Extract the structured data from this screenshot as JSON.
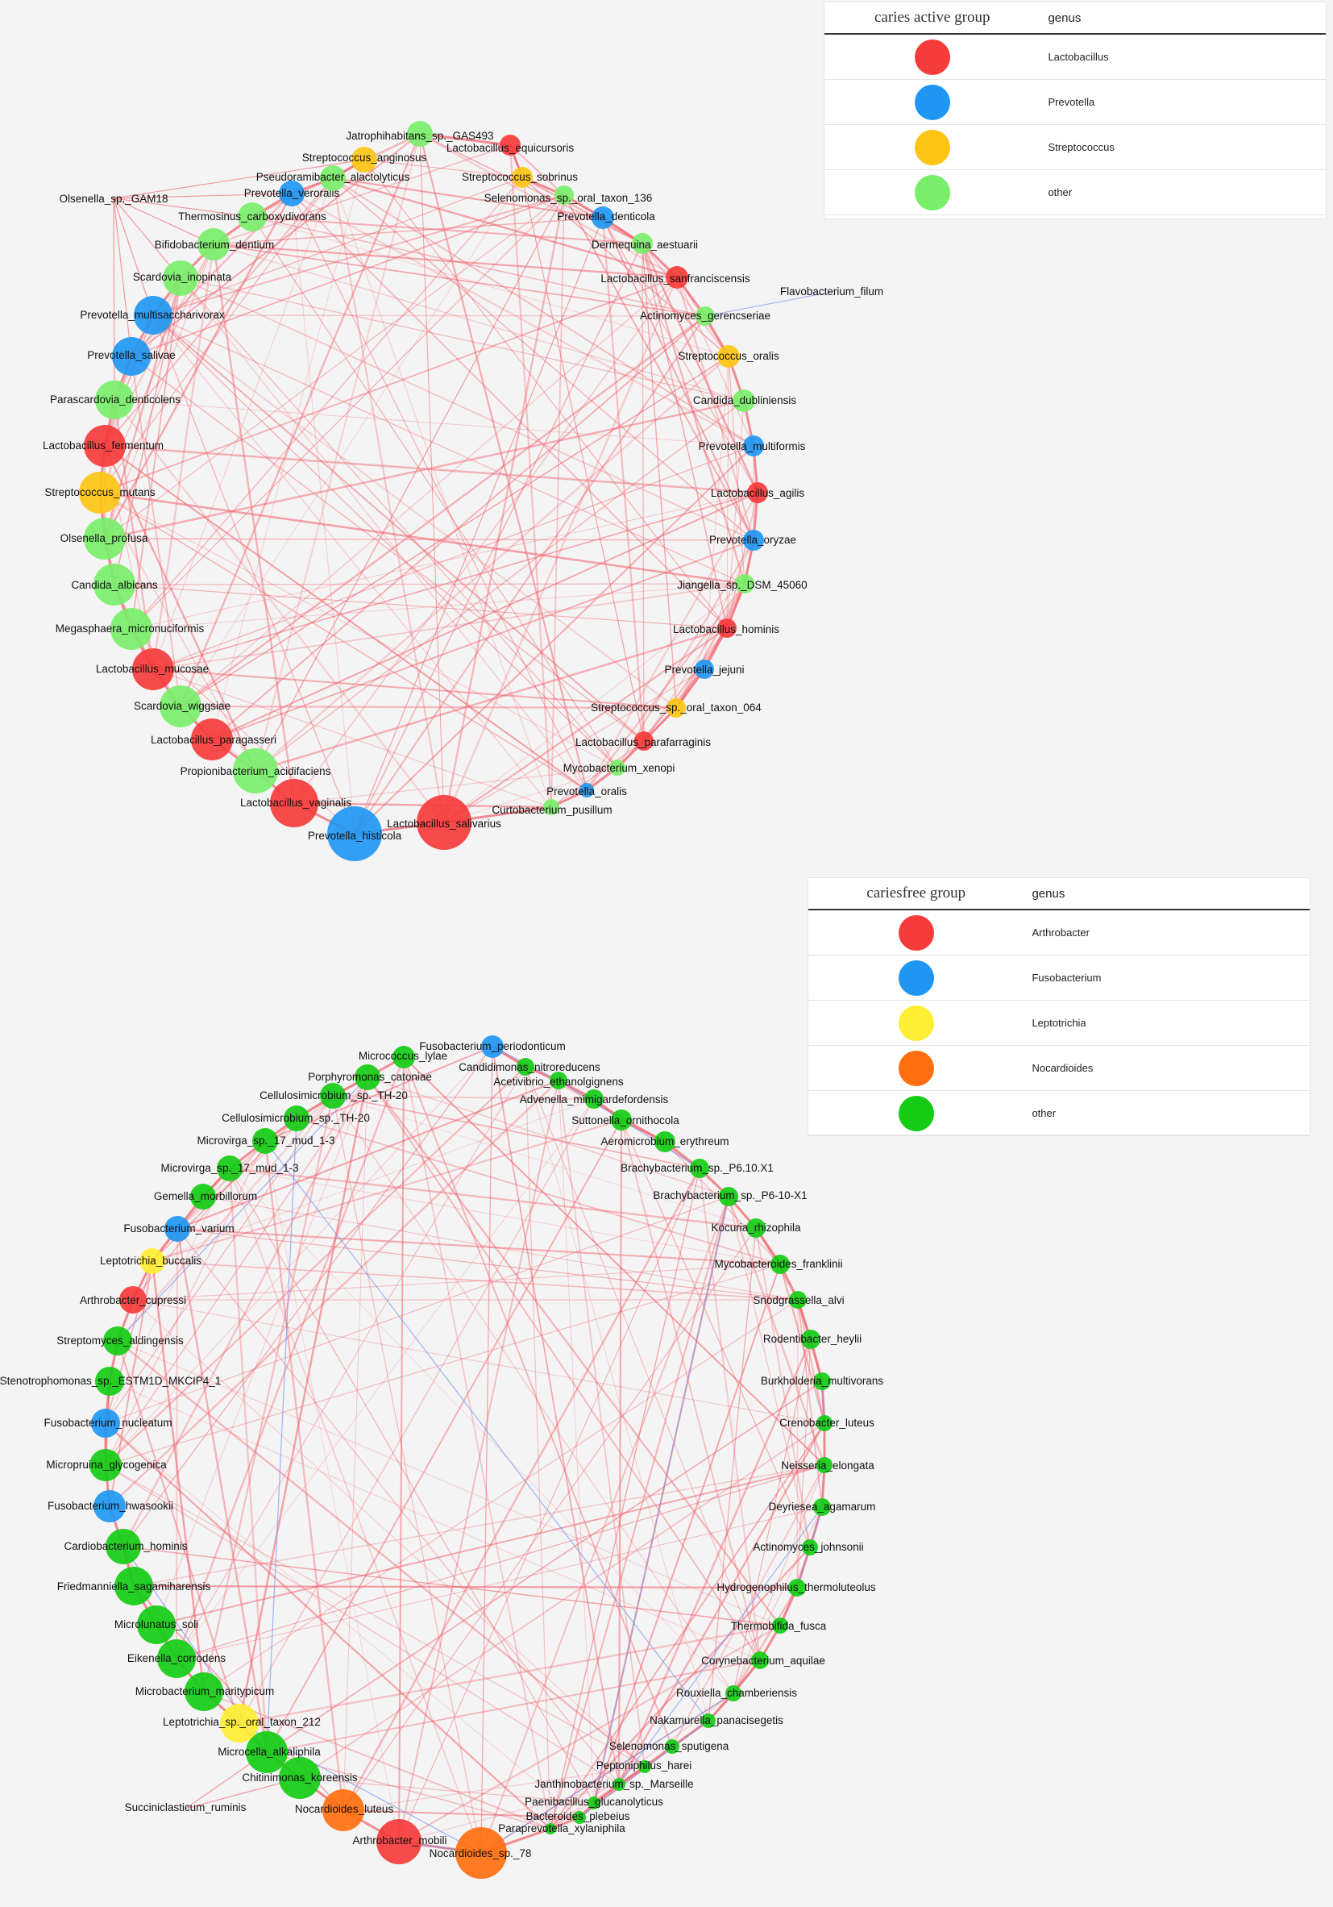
{
  "colors": {
    "Lactobacillus": "#f63b3b",
    "Prevotella": "#1f97f2",
    "Streptococcus": "#fcc515",
    "other_active": "#79ee6a",
    "Arthrobacter": "#f63b3b",
    "Fusobacterium": "#1f97f2",
    "Leptotrichia": "#ffee33",
    "Nocardioides": "#ff6f10",
    "other_free": "#14cc14",
    "edge_pos": "#f25c67",
    "edge_neg": "#6f8ff2"
  },
  "legend_active": {
    "title": "caries active group",
    "genus_header": "genus",
    "items": [
      {
        "label": "Lactobacillus",
        "color": "#f63b3b"
      },
      {
        "label": "Prevotella",
        "color": "#1f97f2"
      },
      {
        "label": "Streptococcus",
        "color": "#fcc515"
      },
      {
        "label": "other",
        "color": "#79ee6a"
      }
    ]
  },
  "legend_free": {
    "title": "cariesfree group",
    "genus_header": "genus",
    "items": [
      {
        "label": "Arthrobacter",
        "color": "#f63b3b"
      },
      {
        "label": "Fusobacterium",
        "color": "#1f97f2"
      },
      {
        "label": "Leptotrichia",
        "color": "#ffee33"
      },
      {
        "label": "Nocardioides",
        "color": "#ff6f10"
      },
      {
        "label": "other",
        "color": "#14cc14"
      }
    ]
  },
  "network_active": {
    "nodes": [
      {
        "name": "Jatrophihabitans_sp._GAS493",
        "genus": "other"
      },
      {
        "name": "Lactobacillus_equicursoris",
        "genus": "Lactobacillus"
      },
      {
        "name": "Streptococcus_sobrinus",
        "genus": "Streptococcus"
      },
      {
        "name": "Selenomonas_sp._oral_taxon_136",
        "genus": "other"
      },
      {
        "name": "Prevotella_denticola",
        "genus": "Prevotella"
      },
      {
        "name": "Dermequina_aestuarii",
        "genus": "other"
      },
      {
        "name": "Lactobacillus_sanfranciscensis",
        "genus": "Lactobacillus"
      },
      {
        "name": "Actinomyces_gerencseriae",
        "genus": "other"
      },
      {
        "name": "Streptococcus_oralis",
        "genus": "Streptococcus"
      },
      {
        "name": "Candida_dubliniensis",
        "genus": "other"
      },
      {
        "name": "Prevotella_multiformis",
        "genus": "Prevotella"
      },
      {
        "name": "Lactobacillus_agilis",
        "genus": "Lactobacillus"
      },
      {
        "name": "Prevotella_oryzae",
        "genus": "Prevotella"
      },
      {
        "name": "Jiangella_sp._DSM_45060",
        "genus": "other"
      },
      {
        "name": "Lactobacillus_hominis",
        "genus": "Lactobacillus"
      },
      {
        "name": "Prevotella_jejuni",
        "genus": "Prevotella"
      },
      {
        "name": "Streptococcus_sp._oral_taxon_064",
        "genus": "Streptococcus"
      },
      {
        "name": "Lactobacillus_parafarraginis",
        "genus": "Lactobacillus"
      },
      {
        "name": "Mycobacterium_xenopi",
        "genus": "other"
      },
      {
        "name": "Prevotella_oralis",
        "genus": "Prevotella"
      },
      {
        "name": "Curtobacterium_pusillum",
        "genus": "other"
      },
      {
        "name": "Lactobacillus_salivarius",
        "genus": "Lactobacillus"
      },
      {
        "name": "Prevotella_histicola",
        "genus": "Prevotella"
      },
      {
        "name": "Lactobacillus_vaginalis",
        "genus": "Lactobacillus"
      },
      {
        "name": "Propionibacterium_acidifaciens",
        "genus": "other"
      },
      {
        "name": "Lactobacillus_paragasseri",
        "genus": "Lactobacillus"
      },
      {
        "name": "Scardovia_wiggsiae",
        "genus": "other"
      },
      {
        "name": "Lactobacillus_mucosae",
        "genus": "Lactobacillus"
      },
      {
        "name": "Megasphaera_micronuciformis",
        "genus": "other"
      },
      {
        "name": "Candida_albicans",
        "genus": "other"
      },
      {
        "name": "Olsenella_profusa",
        "genus": "other"
      },
      {
        "name": "Streptococcus_mutans",
        "genus": "Streptococcus"
      },
      {
        "name": "Lactobacillus_fermentum",
        "genus": "Lactobacillus"
      },
      {
        "name": "Parascardovia_denticolens",
        "genus": "other"
      },
      {
        "name": "Prevotella_salivae",
        "genus": "Prevotella"
      },
      {
        "name": "Prevotella_multisaccharivorax",
        "genus": "Prevotella"
      },
      {
        "name": "Scardovia_inopinata",
        "genus": "other"
      },
      {
        "name": "Bifidobacterium_dentium",
        "genus": "other"
      },
      {
        "name": "Thermosinus_carboxydivorans",
        "genus": "other"
      },
      {
        "name": "Prevotella_veroralis",
        "genus": "Prevotella"
      },
      {
        "name": "Pseudoramibacter_alactolyticus",
        "genus": "other"
      },
      {
        "name": "Streptococcus_anginosus",
        "genus": "Streptococcus"
      },
      {
        "name": "Olsenella_sp._GAM18",
        "genus": "other"
      },
      {
        "name": "Flavobacterium_filum",
        "genus": "other"
      }
    ]
  },
  "network_free": {
    "nodes": [
      {
        "name": "Fusobacterium_periodonticum",
        "genus": "Fusobacterium"
      },
      {
        "name": "Candidimonas_nitroreducens",
        "genus": "other"
      },
      {
        "name": "Acetivibrio_ethanolgignens",
        "genus": "other"
      },
      {
        "name": "Advenella_mimigardefordensis",
        "genus": "other"
      },
      {
        "name": "Suttonella_ornithocola",
        "genus": "other"
      },
      {
        "name": "Aeromicrobium_erythreum",
        "genus": "other"
      },
      {
        "name": "Brachybacterium_sp._P6.10.X1",
        "genus": "other"
      },
      {
        "name": "Brachybacterium_sp._P6-10-X1",
        "genus": "other"
      },
      {
        "name": "Kocuria_rhizophila",
        "genus": "other"
      },
      {
        "name": "Mycobacteroides_franklinii",
        "genus": "other"
      },
      {
        "name": "Snodgrassella_alvi",
        "genus": "other"
      },
      {
        "name": "Rodentibacter_heylii",
        "genus": "other"
      },
      {
        "name": "Burkholderia_multivorans",
        "genus": "other"
      },
      {
        "name": "Crenobacter_luteus",
        "genus": "other"
      },
      {
        "name": "Neisseria_elongata",
        "genus": "other"
      },
      {
        "name": "Deyriesea_agamarum",
        "genus": "other"
      },
      {
        "name": "Actinomyces_johnsonii",
        "genus": "other"
      },
      {
        "name": "Hydrogenophilus_thermoluteolus",
        "genus": "other"
      },
      {
        "name": "Thermobifida_fusca",
        "genus": "other"
      },
      {
        "name": "Corynebacterium_aquilae",
        "genus": "other"
      },
      {
        "name": "Rouxiella_chamberiensis",
        "genus": "other"
      },
      {
        "name": "Nakamurella_panacisegetis",
        "genus": "other"
      },
      {
        "name": "Selenomonas_sputigena",
        "genus": "other"
      },
      {
        "name": "Peptoniphilus_harei",
        "genus": "other"
      },
      {
        "name": "Janthinobacterium_sp._Marseille",
        "genus": "other"
      },
      {
        "name": "Paenibacillus_glucanolyticus",
        "genus": "other"
      },
      {
        "name": "Bacteroides_plebeius",
        "genus": "other"
      },
      {
        "name": "Paraprevotella_xylaniphila",
        "genus": "other"
      },
      {
        "name": "Nocardioides_sp._78",
        "genus": "Nocardioides"
      },
      {
        "name": "Arthrobacter_mobili",
        "genus": "Arthrobacter"
      },
      {
        "name": "Nocardioides_luteus",
        "genus": "Nocardioides"
      },
      {
        "name": "Chitinimonas_koreensis",
        "genus": "other"
      },
      {
        "name": "Microcella_alkaliphila",
        "genus": "other"
      },
      {
        "name": "Leptotrichia_sp._oral_taxon_212",
        "genus": "Leptotrichia"
      },
      {
        "name": "Microbacterium_maritypicum",
        "genus": "other"
      },
      {
        "name": "Eikenella_corrodens",
        "genus": "other"
      },
      {
        "name": "Microlunatus_soli",
        "genus": "other"
      },
      {
        "name": "Friedmanniella_sagamiharensis",
        "genus": "other"
      },
      {
        "name": "Cardiobacterium_hominis",
        "genus": "other"
      },
      {
        "name": "Fusobacterium_hwasookii",
        "genus": "Fusobacterium"
      },
      {
        "name": "Micropruina_glycogenica",
        "genus": "other"
      },
      {
        "name": "Fusobacterium_nucleatum",
        "genus": "Fusobacterium"
      },
      {
        "name": "Stenotrophomonas_sp._ESTM1D_MKCIP4_1",
        "genus": "other"
      },
      {
        "name": "Streptomyces_aldingensis",
        "genus": "other"
      },
      {
        "name": "Arthrobacter_cupressi",
        "genus": "Arthrobacter"
      },
      {
        "name": "Leptotrichia_buccalis",
        "genus": "Leptotrichia"
      },
      {
        "name": "Fusobacterium_varium",
        "genus": "Fusobacterium"
      },
      {
        "name": "Gemella_morbillorum",
        "genus": "other"
      },
      {
        "name": "Microvirga_sp._17_mud_1-3",
        "genus": "other"
      },
      {
        "name": "Microvirga_sp._17_mud_1-3",
        "genus": "other"
      },
      {
        "name": "Cellulosimicrobium_sp._TH-20",
        "genus": "other"
      },
      {
        "name": "Cellulosimicrobium_sp._TH-20",
        "genus": "other"
      },
      {
        "name": "Porphyromonas_catoniae",
        "genus": "other"
      },
      {
        "name": "Micrococcus_lylae",
        "genus": "other"
      },
      {
        "name": "Succiniclasticum_ruminis",
        "genus": "other"
      }
    ]
  }
}
